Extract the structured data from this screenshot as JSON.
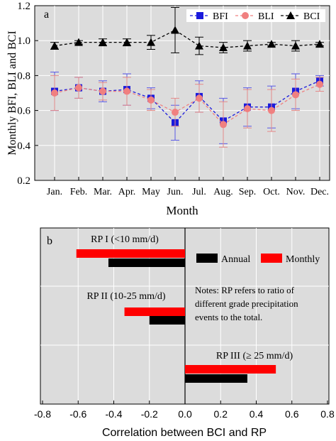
{
  "chart_data": [
    {
      "type": "line",
      "panel_label": "a",
      "ylabel": "Monthly BFI, BLI and BCI",
      "xlabel": "Month",
      "categories": [
        "Jan.",
        "Feb.",
        "Mar.",
        "Apr.",
        "May",
        "Jun.",
        "Jul.",
        "Aug.",
        "Sep.",
        "Oct.",
        "Nov.",
        "Dec."
      ],
      "ylim": [
        0.2,
        1.2
      ],
      "yticks": [
        "0.2",
        "0.4",
        "0.6",
        "0.8",
        "1.0",
        "1.2"
      ],
      "grid": true,
      "legend_position": "top-right",
      "series": [
        {
          "name": "BFI",
          "color": "#1a1adc",
          "marker": "square",
          "values": [
            0.71,
            0.73,
            0.71,
            0.72,
            0.67,
            0.53,
            0.68,
            0.54,
            0.62,
            0.62,
            0.71,
            0.77
          ],
          "err": [
            0.11,
            0.06,
            0.06,
            0.09,
            0.06,
            0.1,
            0.09,
            0.13,
            0.11,
            0.12,
            0.1,
            0.03
          ]
        },
        {
          "name": "BLI",
          "color": "#f08080",
          "marker": "circle",
          "values": [
            0.7,
            0.73,
            0.71,
            0.71,
            0.66,
            0.59,
            0.67,
            0.52,
            0.61,
            0.6,
            0.69,
            0.75
          ],
          "err": [
            0.1,
            0.06,
            0.05,
            0.08,
            0.06,
            0.08,
            0.08,
            0.13,
            0.11,
            0.12,
            0.09,
            0.04
          ]
        },
        {
          "name": "BCI",
          "color": "#000000",
          "marker": "triangle",
          "values": [
            0.97,
            0.99,
            0.99,
            0.99,
            0.99,
            1.06,
            0.97,
            0.96,
            0.97,
            0.98,
            0.97,
            0.98
          ],
          "err": [
            0.02,
            0.01,
            0.02,
            0.02,
            0.04,
            0.13,
            0.05,
            0.03,
            0.03,
            0.01,
            0.03,
            0.01
          ]
        }
      ]
    },
    {
      "type": "bar",
      "orientation": "horizontal",
      "panel_label": "b",
      "xlabel": "Correlation between BCI and RP",
      "xlim": [
        -0.8,
        0.8
      ],
      "xticks": [
        "-0.8",
        "-0.6",
        "-0.4",
        "-0.2",
        "0.0",
        "0.2",
        "0.4",
        "0.6",
        "0.8"
      ],
      "grid": true,
      "legend_position": "top-right",
      "categories": [
        "RP I (<10 mm/d)",
        "RP  II  (10-25 mm/d)",
        "RP III (≥ 25 mm/d)"
      ],
      "series": [
        {
          "name": "Monthly",
          "color": "#ff0000",
          "values": [
            -0.61,
            -0.34,
            0.51
          ]
        },
        {
          "name": "Annual",
          "color": "#000000",
          "values": [
            -0.43,
            -0.2,
            0.35
          ]
        }
      ],
      "note": "Notes: RP  refers to  ratio of different grade precipitation events to the total."
    }
  ]
}
